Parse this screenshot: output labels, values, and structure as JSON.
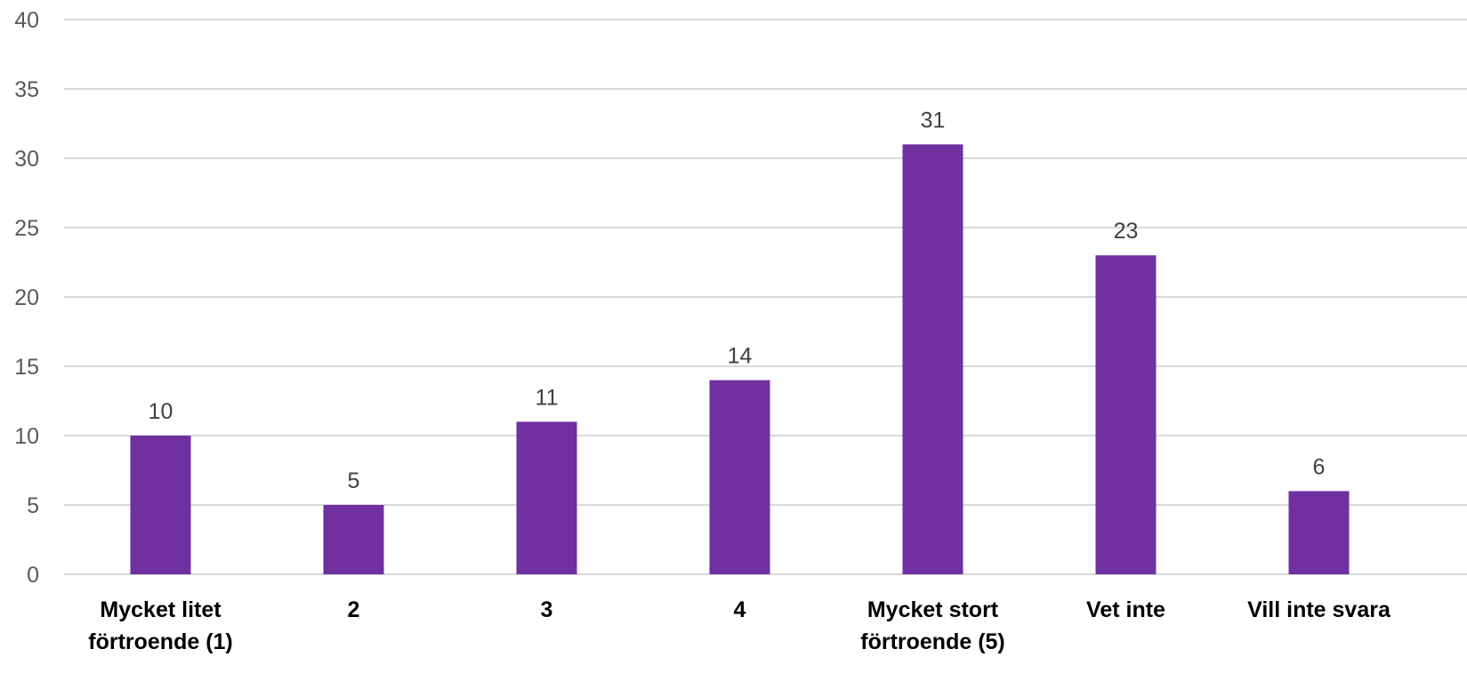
{
  "chart_data": {
    "type": "bar",
    "categories": [
      [
        "Mycket litet",
        "förtroende (1)"
      ],
      [
        "2"
      ],
      [
        "3"
      ],
      [
        "4"
      ],
      [
        "Mycket stort",
        "förtroende (5)"
      ],
      [
        "Vet inte"
      ],
      [
        "Vill inte svara"
      ]
    ],
    "values": [
      10,
      5,
      11,
      14,
      31,
      23,
      6
    ],
    "ylim": [
      0,
      40
    ],
    "yticks": [
      0,
      5,
      10,
      15,
      20,
      25,
      30,
      35,
      40
    ],
    "grid": true,
    "legend": false,
    "bar_color": "#7030a0",
    "title": "",
    "xlabel": "",
    "ylabel": ""
  }
}
